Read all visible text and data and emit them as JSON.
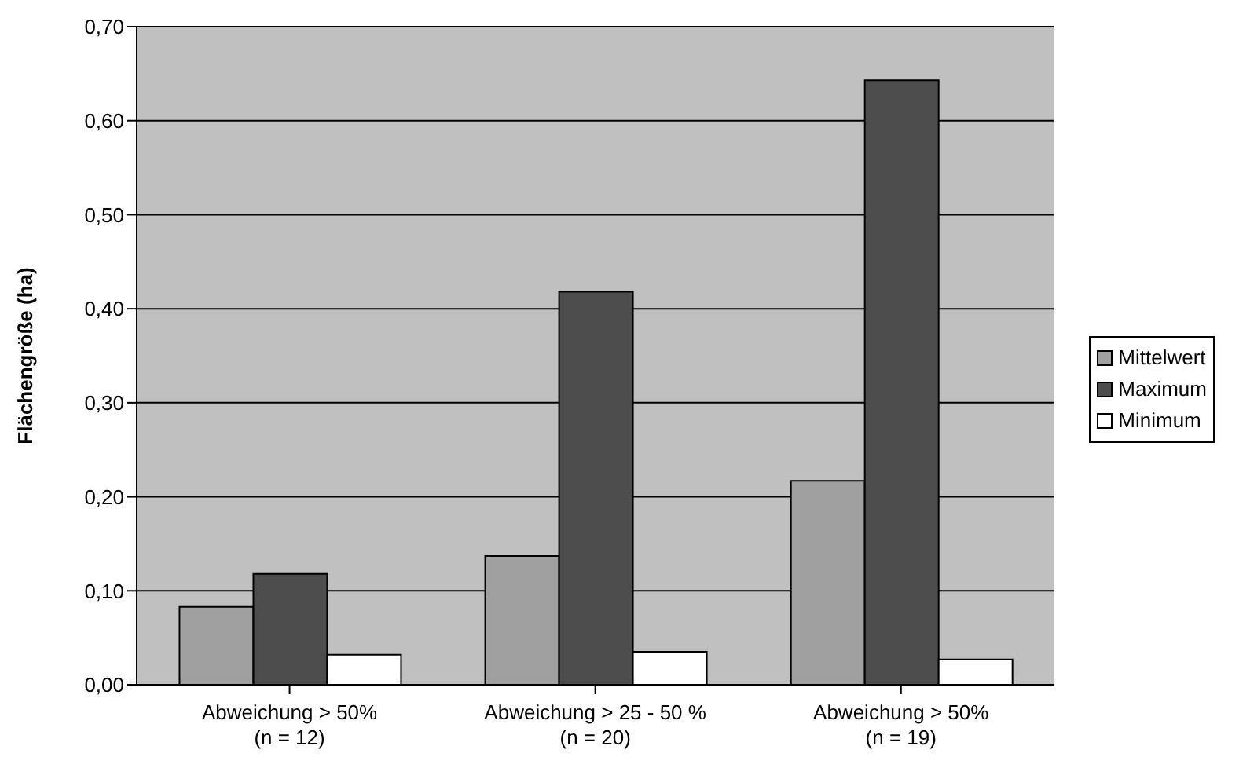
{
  "chart_data": {
    "type": "bar",
    "ylabel": "Flächengröße (ha)",
    "categories": [
      "Abweichung > 50%\n(n = 12)",
      "Abweichung > 25 - 50 %\n(n = 20)",
      "Abweichung > 50%\n(n = 19)"
    ],
    "series": [
      {
        "name": "Mittelwert",
        "color": "#a0a0a0",
        "values": [
          0.083,
          0.137,
          0.217
        ]
      },
      {
        "name": "Maximum",
        "color": "#4d4d4d",
        "values": [
          0.118,
          0.418,
          0.643
        ]
      },
      {
        "name": "Minimum",
        "color": "#ffffff",
        "values": [
          0.032,
          0.035,
          0.027
        ]
      }
    ],
    "ylim": [
      0,
      0.7
    ],
    "yticks": [
      {
        "value": 0,
        "label": "0,00"
      },
      {
        "value": 0.1,
        "label": "0,10"
      },
      {
        "value": 0.2,
        "label": "0,20"
      },
      {
        "value": 0.3,
        "label": "0,30"
      },
      {
        "value": 0.4,
        "label": "0,40"
      },
      {
        "value": 0.5,
        "label": "0,50"
      },
      {
        "value": 0.6,
        "label": "0,60"
      },
      {
        "value": 0.7,
        "label": "0,70"
      }
    ],
    "grid": "y",
    "legend": "right"
  }
}
